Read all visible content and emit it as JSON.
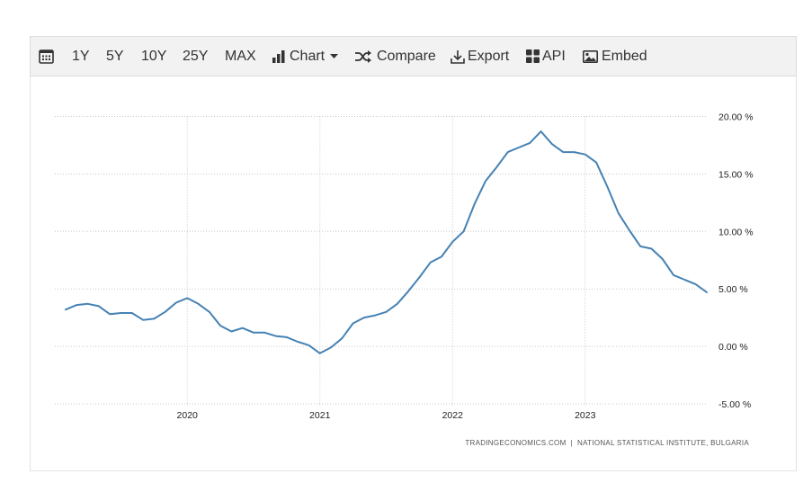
{
  "toolbar": {
    "calendar_icon": "calendar-icon",
    "ranges": [
      "1Y",
      "5Y",
      "10Y",
      "25Y",
      "MAX"
    ],
    "chart_label": "Chart",
    "compare_label": "Compare",
    "export_label": "Export",
    "api_label": "API",
    "embed_label": "Embed"
  },
  "chart_data": {
    "type": "line",
    "title": "",
    "xlabel": "",
    "ylabel": "",
    "line_color": "#4682b4",
    "grid": true,
    "y_axis_side": "right",
    "ylim": [
      -5,
      20
    ],
    "yticks": [
      20,
      15,
      10,
      5,
      0,
      -5
    ],
    "ytick_labels": [
      "20.00 %",
      "15.00 %",
      "10.00 %",
      "5.00 %",
      "0.00 %",
      "-5.00 %"
    ],
    "xticks": [
      "2020",
      "2021",
      "2022",
      "2023"
    ],
    "x_start": "2019-02",
    "series": [
      {
        "values": [
          3.2,
          3.6,
          3.7,
          3.5,
          2.8,
          2.9,
          2.9,
          2.3,
          2.4,
          3.0,
          3.8,
          4.2,
          3.7,
          3.0,
          1.8,
          1.3,
          1.6,
          1.2,
          1.2,
          0.9,
          0.8,
          0.4,
          0.1,
          -0.6,
          -0.1,
          0.7,
          2.0,
          2.5,
          2.7,
          3.0,
          3.7,
          4.8,
          6.0,
          7.3,
          7.8,
          9.1,
          10.0,
          12.4,
          14.4,
          15.6,
          16.9,
          17.3,
          17.7,
          18.7,
          17.6,
          16.9,
          16.9,
          16.7,
          16.0,
          13.9,
          11.6,
          10.1,
          8.7,
          8.5,
          7.6,
          6.2,
          5.8,
          5.4,
          4.7
        ]
      }
    ],
    "source_note": "TRADINGECONOMICS.COM  |  NATIONAL STATISTICAL INSTITUTE, BULGARIA"
  }
}
